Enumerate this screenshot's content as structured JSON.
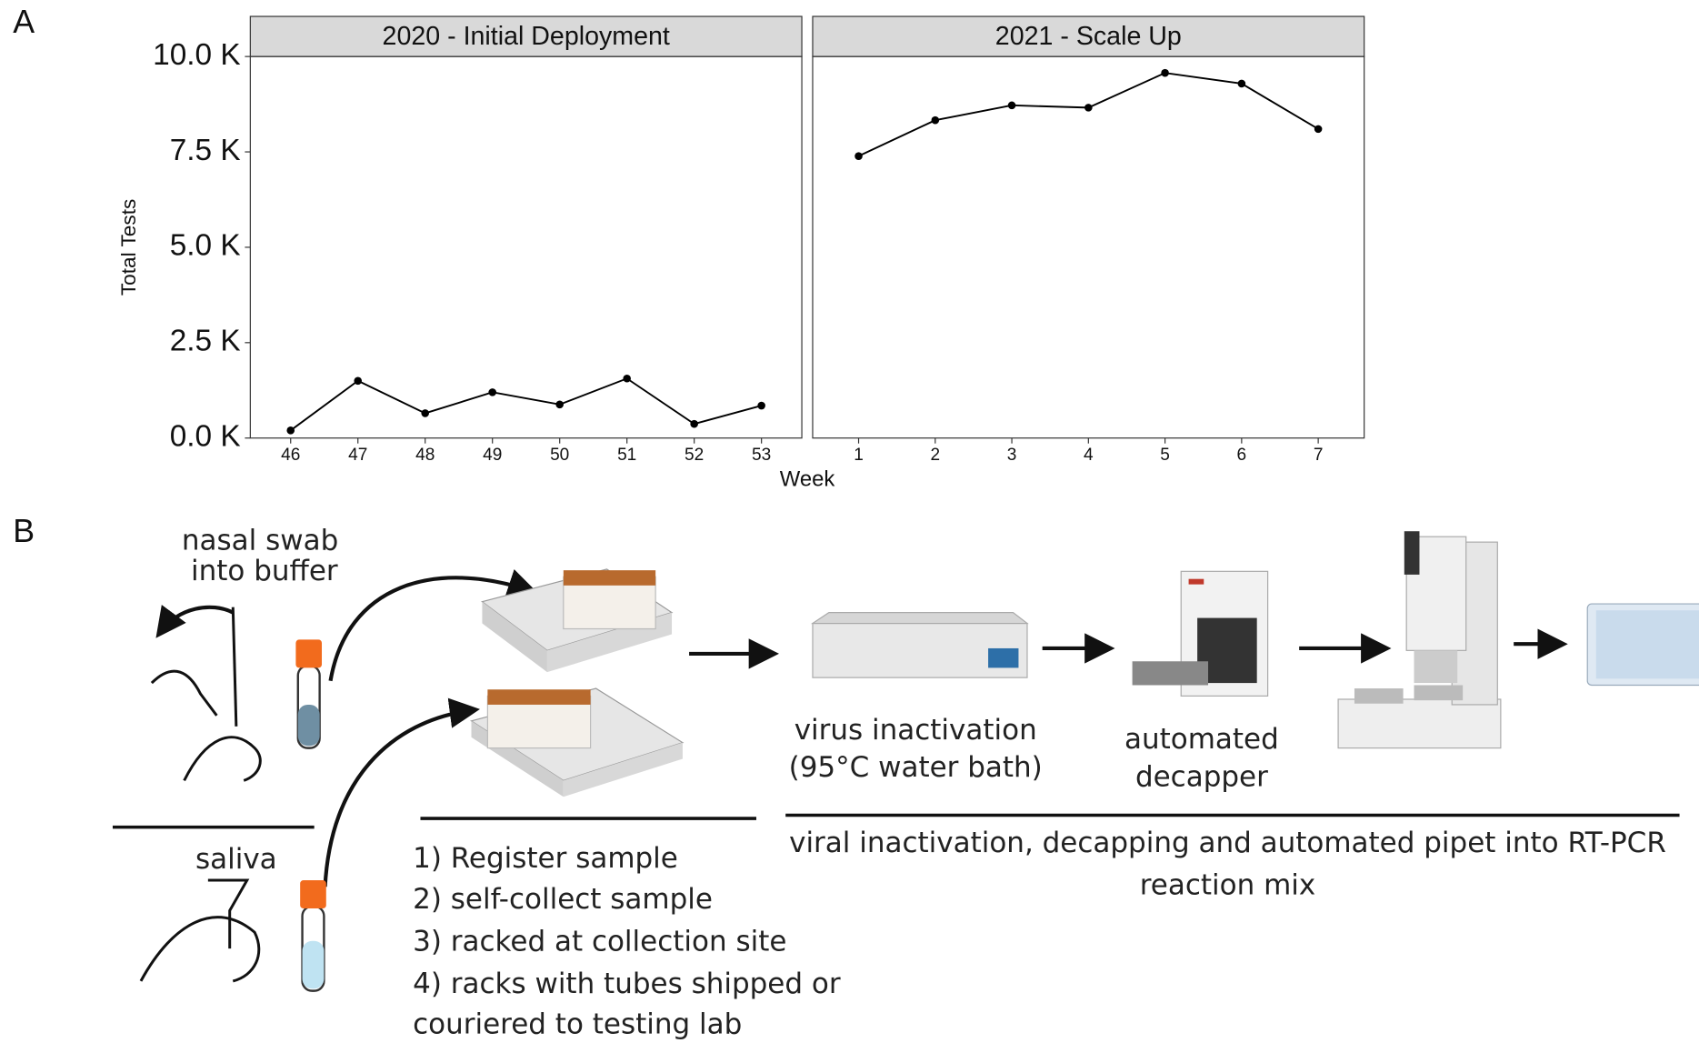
{
  "panel_labels": [
    "A",
    "B"
  ],
  "chart_data": [
    {
      "type": "line",
      "title": "2020 - Initial Deployment",
      "ylabel": "Total Tests",
      "xlabel": "Week",
      "x": [
        46,
        47,
        48,
        49,
        50,
        51,
        52,
        53
      ],
      "series": [
        {
          "name": "2020",
          "color": "#000000",
          "values": [
            200,
            1500,
            650,
            1200,
            880,
            1560,
            370,
            850
          ]
        }
      ],
      "xlim": [
        45.4,
        53.6
      ],
      "xticks": [
        46,
        47,
        48,
        49,
        50,
        51,
        52,
        53
      ],
      "ylim": [
        0,
        10000
      ],
      "yticks": [
        {
          "value": 0,
          "label": "0.0 K"
        },
        {
          "value": 2500,
          "label": "2.5 K"
        },
        {
          "value": 5000,
          "label": "5.0 K"
        },
        {
          "value": 7500,
          "label": "7.5 K"
        },
        {
          "value": 10000,
          "label": "10.0 K"
        }
      ]
    },
    {
      "type": "line",
      "title": "2021 - Scale Up",
      "x": [
        1,
        2,
        3,
        4,
        5,
        6,
        7
      ],
      "series": [
        {
          "name": "2021",
          "color": "#000000",
          "values": [
            7390,
            8330,
            8720,
            8660,
            9570,
            9290,
            8100
          ]
        }
      ],
      "xlim": [
        0.4,
        7.6
      ],
      "xticks": [
        1,
        2,
        3,
        4,
        5,
        6,
        7
      ],
      "ylim": [
        0,
        10000
      ]
    }
  ],
  "diagram": {
    "nasal_swab": [
      "nasal swab",
      "into buffer"
    ],
    "saliva": "saliva",
    "steps": [
      "1) Register sample",
      "2) self-collect sample",
      "3) racked at collection site",
      "4) racks with tubes shipped or",
      "couriered to testing lab"
    ],
    "water_bath": [
      "virus inactivation",
      "(95°C water bath)"
    ],
    "decapper": [
      "automated",
      "decapper"
    ],
    "caption": [
      "viral inactivation, decapping and automated pipet into RT-PCR",
      "reaction mix"
    ]
  }
}
